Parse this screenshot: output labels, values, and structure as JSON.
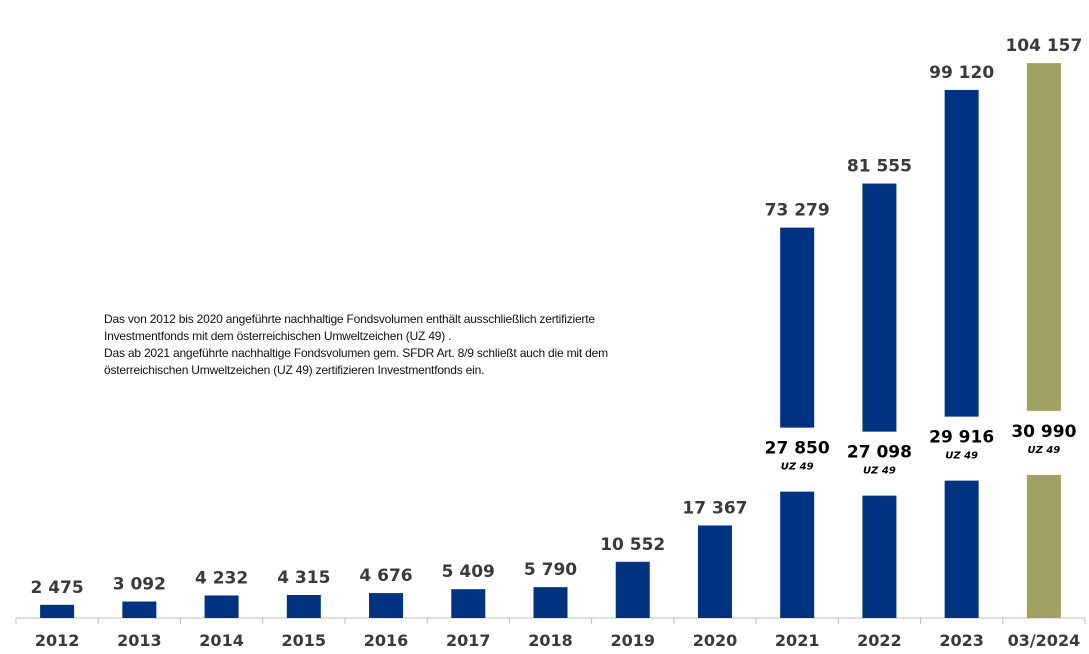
{
  "chart_data": {
    "type": "bar",
    "categories": [
      "2012",
      "2013",
      "2014",
      "2015",
      "2016",
      "2017",
      "2018",
      "2019",
      "2020",
      "2021",
      "2022",
      "2023",
      "03/2024"
    ],
    "values": [
      2475,
      3092,
      4232,
      4315,
      4676,
      5409,
      5790,
      10552,
      17367,
      73279,
      81555,
      99120,
      104157
    ],
    "value_labels": [
      "2 475",
      "3 092",
      "4 232",
      "4 315",
      "4 676",
      "5 409",
      "5 790",
      "10 552",
      "17 367",
      "73 279",
      "81 555",
      "99 120",
      "104 157"
    ],
    "uz49": [
      {
        "category": "2021",
        "value": 27850,
        "label": "27 850",
        "tag": "UZ 49"
      },
      {
        "category": "2022",
        "value": 27098,
        "label": "27 098",
        "tag": "UZ 49"
      },
      {
        "category": "2023",
        "value": 29916,
        "label": "29 916",
        "tag": "UZ 49"
      },
      {
        "category": "03/2024",
        "value": 30990,
        "label": "30 990",
        "tag": "UZ 49"
      }
    ],
    "ylim": [
      0,
      110000
    ],
    "grid": false,
    "legend": "none",
    "colors": {
      "bar": "#00337F",
      "highlight": "#A2A164"
    },
    "highlight_category": "03/2024"
  },
  "annotation": {
    "lines": [
      "Das von 2012 bis 2020 angeführte nachhaltige Fondsvolumen enthält ausschließlich zertifizierte",
      "Investmentfonds mit dem österreichischen Umweltzeichen (UZ 49) .",
      "Das ab 2021 angeführte nachhaltige Fondsvolumen gem. SFDR Art. 8/9 schließt auch die mit dem",
      "österreichischen Umweltzeichen (UZ 49) zertifizieren Investmentfonds ein."
    ]
  }
}
